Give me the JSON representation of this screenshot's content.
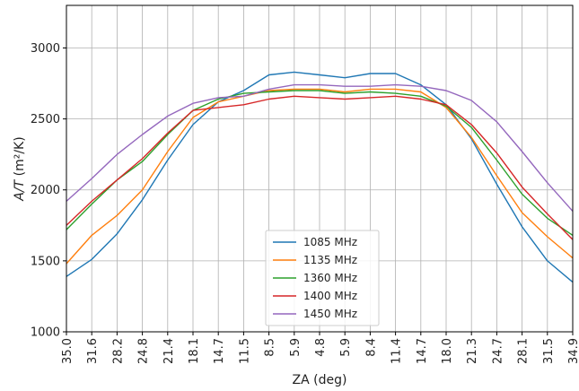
{
  "chart_data": {
    "type": "line",
    "xlabel": "ZA (deg)",
    "ylabel": "A/T (m²/K)",
    "ylabel_parts": {
      "italic": "A/T",
      "unit": " (m²/K)"
    },
    "ylim": [
      1000,
      3300
    ],
    "y_ticks": [
      1000,
      1500,
      2000,
      2500,
      3000
    ],
    "x_tick_labels": [
      "35.0",
      "31.6",
      "28.2",
      "24.8",
      "21.4",
      "18.1",
      "14.7",
      "11.5",
      "8.5",
      "5.9",
      "4.8",
      "5.9",
      "8.4",
      "11.4",
      "14.7",
      "18.0",
      "21.3",
      "24.7",
      "28.1",
      "31.5",
      "34.9"
    ],
    "grid": true,
    "legend_position": "bottom-center",
    "x_index": [
      0,
      1,
      2,
      3,
      4,
      5,
      6,
      7,
      8,
      9,
      10,
      11,
      12,
      13,
      14,
      15,
      16,
      17,
      18,
      19,
      20
    ],
    "series": [
      {
        "name": "1085 MHz",
        "color": "#1f77b4",
        "values": [
          1390,
          1510,
          1690,
          1930,
          2210,
          2460,
          2620,
          2700,
          2810,
          2830,
          2810,
          2790,
          2820,
          2820,
          2740,
          2600,
          2360,
          2040,
          1740,
          1500,
          1350
        ]
      },
      {
        "name": "1135 MHz",
        "color": "#ff7f0e",
        "values": [
          1480,
          1680,
          1820,
          2000,
          2270,
          2510,
          2620,
          2660,
          2700,
          2710,
          2710,
          2690,
          2710,
          2710,
          2690,
          2580,
          2370,
          2100,
          1840,
          1670,
          1520
        ]
      },
      {
        "name": "1360 MHz",
        "color": "#2ca02c",
        "values": [
          1720,
          1900,
          2070,
          2200,
          2390,
          2560,
          2640,
          2680,
          2690,
          2700,
          2700,
          2680,
          2690,
          2680,
          2660,
          2590,
          2440,
          2210,
          1970,
          1800,
          1680
        ]
      },
      {
        "name": "1400 MHz",
        "color": "#d62728",
        "values": [
          1750,
          1920,
          2070,
          2220,
          2400,
          2560,
          2580,
          2600,
          2640,
          2660,
          2650,
          2640,
          2650,
          2660,
          2640,
          2600,
          2460,
          2260,
          2020,
          1830,
          1650
        ]
      },
      {
        "name": "1450 MHz",
        "color": "#9467bd",
        "values": [
          1920,
          2080,
          2250,
          2390,
          2520,
          2610,
          2650,
          2660,
          2710,
          2740,
          2740,
          2730,
          2730,
          2740,
          2730,
          2700,
          2630,
          2480,
          2270,
          2050,
          1850
        ]
      }
    ]
  }
}
